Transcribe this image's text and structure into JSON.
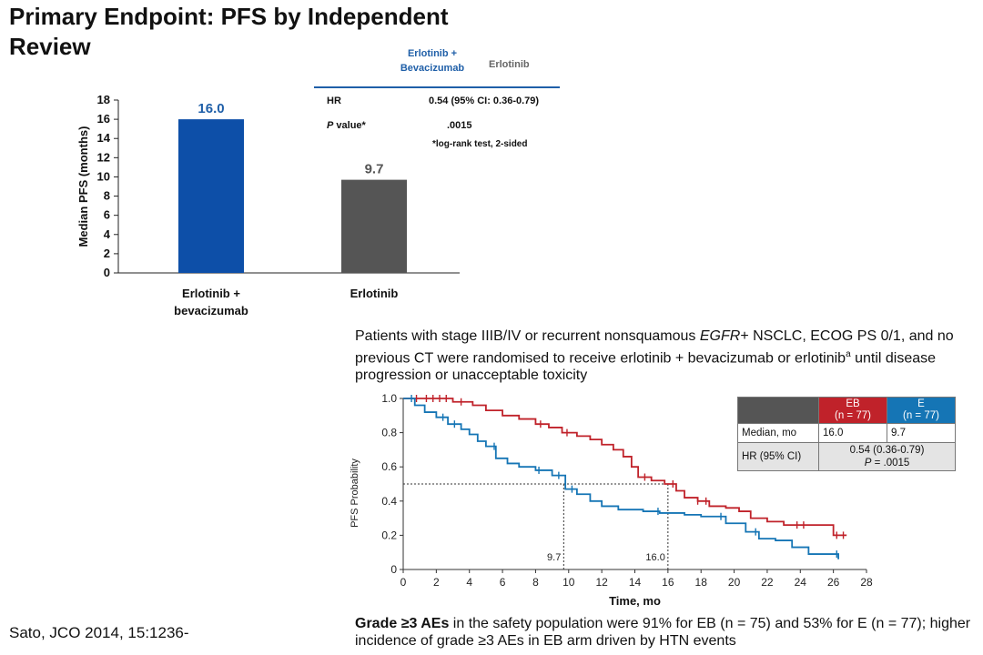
{
  "title": "Primary Endpoint: PFS by Independent Review",
  "citation": "Sato, JCO 2014, 15:1236-",
  "bar_chart": {
    "type": "bar",
    "ylabel": "Median PFS (months)",
    "categories": [
      "Erlotinib + bevacizumab",
      "Erlotinib"
    ],
    "category_lines": [
      [
        "Erlotinib +",
        "bevacizumab"
      ],
      [
        "Erlotinib"
      ]
    ],
    "values": [
      16.0,
      9.7
    ],
    "value_labels": [
      "16.0",
      "9.7"
    ],
    "ylim": [
      0,
      18
    ],
    "yticks": [
      0,
      2,
      4,
      6,
      8,
      10,
      12,
      14,
      16,
      18
    ],
    "colors": [
      "#0d4fa8",
      "#555555"
    ],
    "label_colors": [
      "#1f5fa8",
      "#555555"
    ]
  },
  "stats_table": {
    "header_eb": [
      "Erlotinib +",
      "Bevacizumab"
    ],
    "header_e": "Erlotinib",
    "hr_label": "HR",
    "hr_value": "0.54 (95% CI: 0.36-0.79)",
    "p_label": "P",
    "p_label_suffix": " value*",
    "p_value": ".0015",
    "footnote": "*log-rank test, 2-sided"
  },
  "design_text": {
    "part1": "Patients with stage IIIB/IV or recurrent nonsquamous ",
    "egfr": "EGFR",
    "part2": "+ NSCLC, ECOG PS 0/1, and no previous CT were randomised to receive erlotinib + bevacizumab or erlotinib",
    "sup": "a",
    "part3": " until disease progression or unacceptable toxicity"
  },
  "chart_data": {
    "type": "line",
    "ylabel": "PFS Probability",
    "xlabel": "Time, mo",
    "xlim": [
      0,
      28
    ],
    "ylim": [
      0,
      1.0
    ],
    "xticks": [
      0,
      2,
      4,
      6,
      8,
      10,
      12,
      14,
      16,
      18,
      20,
      22,
      24,
      26,
      28
    ],
    "yticks": [
      0,
      0.2,
      0.4,
      0.6,
      0.8,
      1.0
    ],
    "ytick_labels": [
      "0",
      "0.2",
      "0.4",
      "0.6",
      "0.8",
      "1.0"
    ],
    "medians": [
      {
        "x": 9.7,
        "label": "9.7"
      },
      {
        "x": 16.0,
        "label": "16.0"
      }
    ],
    "median_y": 0.5,
    "series": [
      {
        "name": "EB",
        "color": "#c0222a",
        "x": [
          0,
          3.0,
          4.2,
          5.0,
          6.0,
          7.0,
          8.0,
          8.8,
          9.6,
          10.5,
          11.3,
          12.0,
          12.7,
          13.3,
          13.8,
          14.2,
          15.0,
          15.8,
          16.5,
          17.0,
          17.8,
          18.5,
          19.5,
          20.3,
          21.0,
          22.0,
          23.0,
          24.0,
          25.0,
          26.0,
          26.8
        ],
        "y": [
          1.0,
          0.98,
          0.96,
          0.93,
          0.9,
          0.88,
          0.85,
          0.83,
          0.8,
          0.78,
          0.76,
          0.73,
          0.7,
          0.66,
          0.6,
          0.54,
          0.52,
          0.5,
          0.46,
          0.42,
          0.4,
          0.37,
          0.36,
          0.34,
          0.3,
          0.28,
          0.26,
          0.26,
          0.26,
          0.2,
          0.2
        ],
        "censors_x": [
          0.8,
          1.4,
          1.8,
          2.2,
          2.6,
          3.5,
          8.3,
          9.9,
          14.6,
          16.3,
          17.8,
          18.3,
          23.8,
          24.2,
          26.2,
          26.6
        ]
      },
      {
        "name": "E",
        "color": "#1575b5",
        "x": [
          0,
          0.7,
          1.3,
          2.0,
          2.7,
          3.5,
          4.0,
          4.5,
          5.0,
          5.6,
          6.3,
          7.0,
          8.0,
          9.0,
          9.8,
          10.5,
          11.3,
          12.0,
          13.0,
          14.5,
          15.5,
          17.0,
          18.0,
          19.5,
          20.7,
          21.5,
          22.5,
          23.5,
          24.5,
          25.5,
          26.3
        ],
        "y": [
          1.0,
          0.96,
          0.92,
          0.89,
          0.85,
          0.82,
          0.79,
          0.75,
          0.72,
          0.65,
          0.62,
          0.6,
          0.58,
          0.55,
          0.47,
          0.44,
          0.4,
          0.37,
          0.35,
          0.34,
          0.33,
          0.32,
          0.31,
          0.27,
          0.22,
          0.18,
          0.17,
          0.13,
          0.09,
          0.09,
          0.06
        ],
        "censors_x": [
          0.5,
          2.4,
          3.1,
          5.5,
          8.2,
          9.4,
          10.2,
          15.4,
          19.2,
          21.3,
          26.2
        ]
      }
    ]
  },
  "km_table": {
    "eb_header": [
      "EB",
      "(n = 77)"
    ],
    "e_header": [
      "E",
      "(n = 77)"
    ],
    "median_label": "Median, mo",
    "median_eb": "16.0",
    "median_e": "9.7",
    "hr_label": "HR (95% CI)",
    "hr_value": "0.54 (0.36-0.79)",
    "p_italic": "P",
    "p_rest": " = .0015"
  },
  "safety_text": {
    "bold": "Grade ≥3 AEs",
    "rest": " in the safety population were 91% for EB (n = 75) and 53% for E (n = 77); higher incidence of grade ≥3 AEs in EB arm driven by HTN events"
  }
}
